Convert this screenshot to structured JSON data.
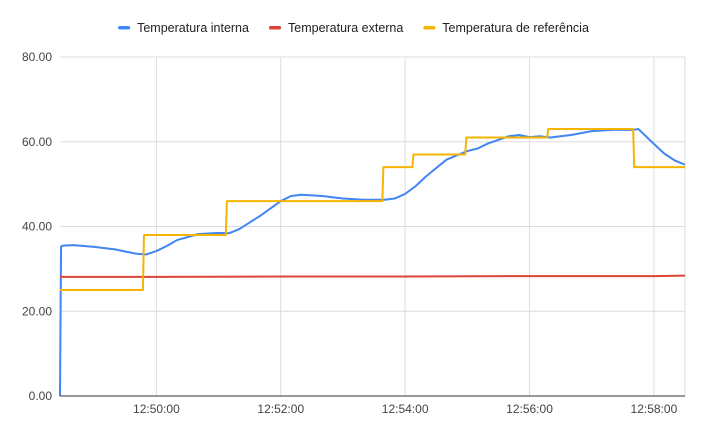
{
  "chart_data": {
    "type": "line",
    "title": "",
    "xlabel": "",
    "ylabel": "",
    "ylim": [
      0,
      80
    ],
    "xlim": [
      "12:48:27",
      "12:58:30"
    ],
    "x_ticks": [
      "12:50:00",
      "12:52:00",
      "12:54:00",
      "12:56:00",
      "12:58:00"
    ],
    "y_ticks": [
      "0.00",
      "20.00",
      "40.00",
      "60.00",
      "80.00"
    ],
    "grid": true,
    "legend_position": "top",
    "series": [
      {
        "name": "Temperatura interna",
        "color": "#4285f4",
        "points": [
          [
            "12:48:27",
            0
          ],
          [
            "12:48:28",
            35.3
          ],
          [
            "12:48:30",
            35.5
          ],
          [
            "12:48:40",
            35.6
          ],
          [
            "12:49:00",
            35.2
          ],
          [
            "12:49:20",
            34.6
          ],
          [
            "12:49:40",
            33.6
          ],
          [
            "12:49:50",
            33.4
          ],
          [
            "12:50:00",
            34.2
          ],
          [
            "12:50:10",
            35.4
          ],
          [
            "12:50:20",
            36.8
          ],
          [
            "12:50:40",
            38.2
          ],
          [
            "12:51:00",
            38.5
          ],
          [
            "12:51:10",
            38.4
          ],
          [
            "12:51:20",
            39.4
          ],
          [
            "12:51:40",
            42.5
          ],
          [
            "12:52:00",
            46.0
          ],
          [
            "12:52:10",
            47.2
          ],
          [
            "12:52:20",
            47.5
          ],
          [
            "12:52:40",
            47.2
          ],
          [
            "12:53:00",
            46.6
          ],
          [
            "12:53:20",
            46.3
          ],
          [
            "12:53:40",
            46.3
          ],
          [
            "12:53:50",
            46.6
          ],
          [
            "12:54:00",
            47.7
          ],
          [
            "12:54:10",
            49.5
          ],
          [
            "12:54:20",
            51.8
          ],
          [
            "12:54:40",
            55.8
          ],
          [
            "12:55:00",
            57.8
          ],
          [
            "12:55:10",
            58.4
          ],
          [
            "12:55:20",
            59.6
          ],
          [
            "12:55:40",
            61.3
          ],
          [
            "12:55:50",
            61.6
          ],
          [
            "12:56:00",
            61.1
          ],
          [
            "12:56:10",
            61.3
          ],
          [
            "12:56:20",
            61.0
          ],
          [
            "12:56:40",
            61.6
          ],
          [
            "12:57:00",
            62.5
          ],
          [
            "12:57:20",
            62.8
          ],
          [
            "12:57:40",
            62.8
          ],
          [
            "12:57:45",
            63.0
          ],
          [
            "12:58:00",
            59.5
          ],
          [
            "12:58:10",
            57.2
          ],
          [
            "12:58:20",
            55.6
          ],
          [
            "12:58:30",
            54.6
          ]
        ]
      },
      {
        "name": "Temperatura externa",
        "color": "#db4437",
        "points": [
          [
            "12:48:27",
            28.1
          ],
          [
            "12:50:00",
            28.1
          ],
          [
            "12:52:00",
            28.2
          ],
          [
            "12:54:00",
            28.2
          ],
          [
            "12:56:00",
            28.3
          ],
          [
            "12:58:00",
            28.3
          ],
          [
            "12:58:30",
            28.4
          ]
        ]
      },
      {
        "name": "Temperatura de referência",
        "color": "#f4b400",
        "points": [
          [
            "12:48:27",
            25
          ],
          [
            "12:49:47",
            25
          ],
          [
            "12:49:48",
            38
          ],
          [
            "12:51:07",
            38
          ],
          [
            "12:51:08",
            46
          ],
          [
            "12:53:38",
            46
          ],
          [
            "12:53:39",
            54
          ],
          [
            "12:54:07",
            54
          ],
          [
            "12:54:08",
            57
          ],
          [
            "12:54:58",
            57
          ],
          [
            "12:54:59",
            61
          ],
          [
            "12:56:17",
            61
          ],
          [
            "12:56:18",
            63
          ],
          [
            "12:57:40",
            63
          ],
          [
            "12:57:41",
            54
          ],
          [
            "12:58:30",
            54
          ]
        ]
      }
    ]
  }
}
